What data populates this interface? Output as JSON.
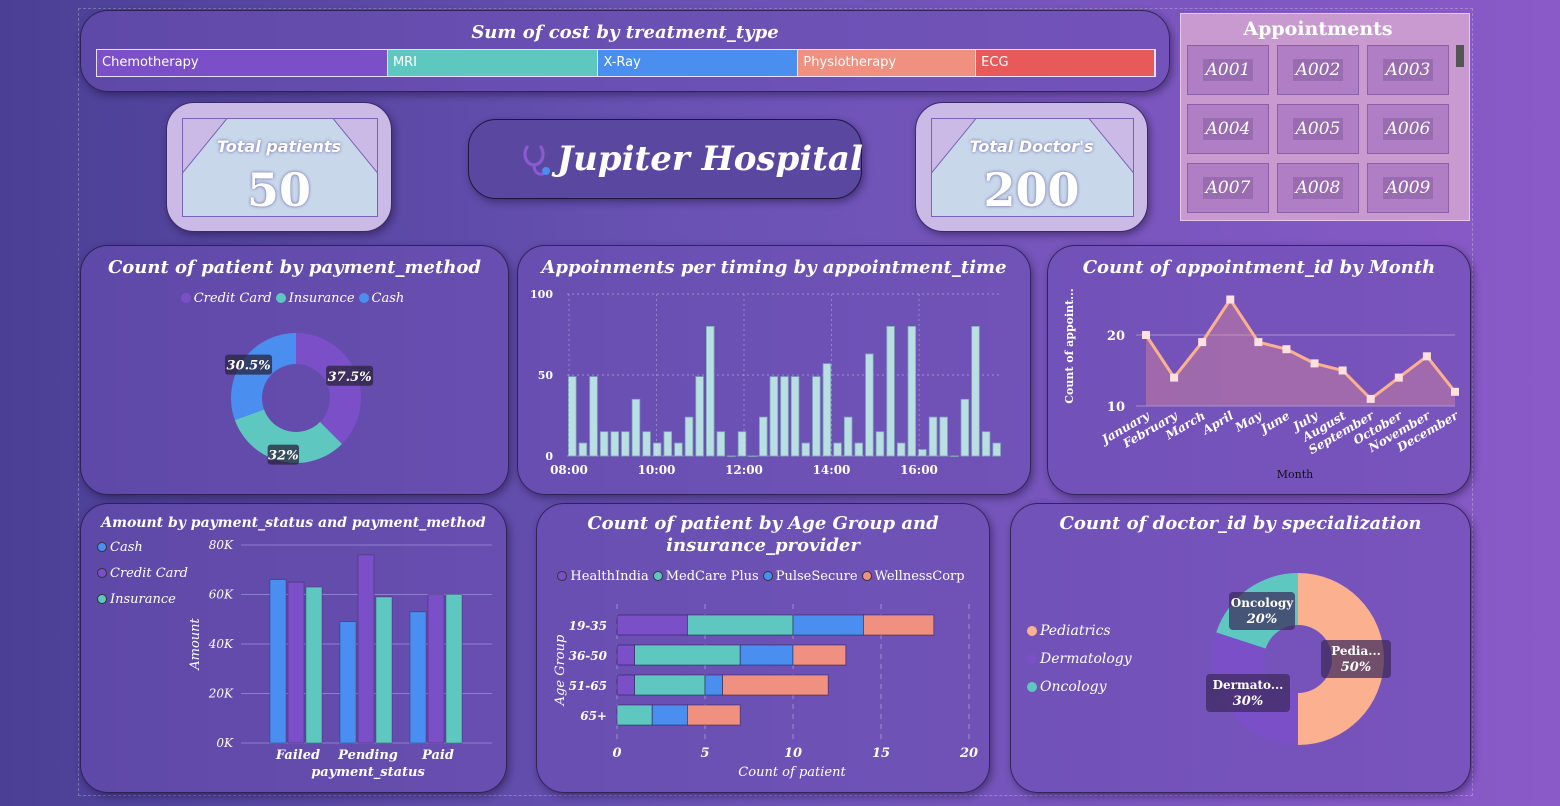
{
  "colors": {
    "purple": "#7b4fc8",
    "teal": "#5ec8c0",
    "blue": "#4a8ff0",
    "salmon": "#f09080",
    "red": "#e85a5a",
    "peach": "#fbb18f",
    "bar": "#b9dfe3"
  },
  "treatment": {
    "title": "Sum of cost by treatment_type",
    "items": [
      {
        "label": "Chemotherapy",
        "value": 27.5
      },
      {
        "label": "MRI",
        "value": 19.9
      },
      {
        "label": "X-Ray",
        "value": 18.9
      },
      {
        "label": "Physiotherapy",
        "value": 16.8
      },
      {
        "label": "ECG",
        "value": 16.9
      }
    ]
  },
  "appointments": {
    "title": "Appointments",
    "ids": [
      "A001",
      "A002",
      "A003",
      "A004",
      "A005",
      "A006",
      "A007",
      "A008",
      "A009"
    ]
  },
  "kpi": {
    "patients_label": "Total patients",
    "patients_value": "50",
    "doctors_label": "Total Doctor's",
    "doctors_value": "200"
  },
  "hospital": {
    "name": "Jupiter Hospital"
  },
  "payment_donut": {
    "title": "Count of patient by payment_method",
    "legend": [
      "Credit Card",
      "Insurance",
      "Cash"
    ],
    "slices": [
      {
        "name": "Credit Card",
        "value": 37.5,
        "label": "37.5%"
      },
      {
        "name": "Insurance",
        "value": 32,
        "label": "32%"
      },
      {
        "name": "Cash",
        "value": 30.5,
        "label": "30.5%"
      }
    ]
  },
  "timing": {
    "title": "Appoinments per timing by appointment_time",
    "yticks": [
      "100",
      "50",
      "0"
    ],
    "xticks": [
      "08:00",
      "10:00",
      "12:00",
      "14:00",
      "16:00"
    ],
    "values": [
      49,
      8,
      49,
      15,
      15,
      15,
      35,
      15,
      8,
      15,
      8,
      24,
      49,
      80,
      15,
      0,
      15,
      0,
      24,
      49,
      49,
      49,
      8,
      49,
      57,
      8,
      24,
      8,
      63,
      15,
      80,
      8,
      80,
      4,
      24,
      24,
      0,
      35,
      80,
      15,
      8
    ]
  },
  "monthly": {
    "title": "Count of appointment_id by Month",
    "ylabel": "Count of appoint...",
    "xlabel": "Month",
    "yticks": [
      "20",
      "10"
    ],
    "months": [
      "January",
      "February",
      "March",
      "April",
      "May",
      "June",
      "July",
      "August",
      "September",
      "October",
      "November",
      "December"
    ],
    "values": [
      20,
      14,
      19,
      25,
      19,
      18,
      16,
      15,
      11,
      14,
      17,
      12
    ]
  },
  "amount": {
    "title": "Amount by payment_status and payment_method",
    "legend": [
      "Cash",
      "Credit Card",
      "Insurance"
    ],
    "yticks": [
      "80K",
      "60K",
      "40K",
      "20K",
      "0K"
    ],
    "ylabel": "Amount",
    "xlabel": "payment_status",
    "categories": [
      "Failed",
      "Pending",
      "Paid"
    ],
    "series": [
      {
        "name": "Cash",
        "values": [
          66000,
          49000,
          53000
        ]
      },
      {
        "name": "Credit Card",
        "values": [
          65000,
          76000,
          60000
        ]
      },
      {
        "name": "Insurance",
        "values": [
          63000,
          59000,
          60000
        ]
      }
    ]
  },
  "age": {
    "title_line1": "Count of patient by Age Group and",
    "title_line2": "insurance_provider",
    "legend": [
      "HealthIndia",
      "MedCare Plus",
      "PulseSecure",
      "WellnessCorp"
    ],
    "groups": [
      "19-35",
      "36-50",
      "51-65",
      "65+"
    ],
    "ylabel": "Age Group",
    "xlabel": "Count of patient",
    "xticks": [
      "0",
      "5",
      "10",
      "15",
      "20"
    ],
    "series": [
      {
        "name": "HealthIndia",
        "values": [
          4,
          1,
          1,
          0
        ]
      },
      {
        "name": "MedCare Plus",
        "values": [
          6,
          6,
          4,
          2
        ]
      },
      {
        "name": "PulseSecure",
        "values": [
          4,
          3,
          1,
          2
        ]
      },
      {
        "name": "WellnessCorp",
        "values": [
          4,
          3,
          6,
          3
        ]
      }
    ]
  },
  "special": {
    "title": "Count of doctor_id by specialization",
    "legend": [
      "Pediatrics",
      "Dermatology",
      "Oncology"
    ],
    "slices": [
      {
        "name": "Pediatrics",
        "value": 50,
        "label1": "Pedia...",
        "label2": "50%"
      },
      {
        "name": "Dermatology",
        "value": 30,
        "label1": "Dermato...",
        "label2": "30%"
      },
      {
        "name": "Oncology",
        "value": 20,
        "label1": "Oncology",
        "label2": "20%"
      }
    ]
  }
}
